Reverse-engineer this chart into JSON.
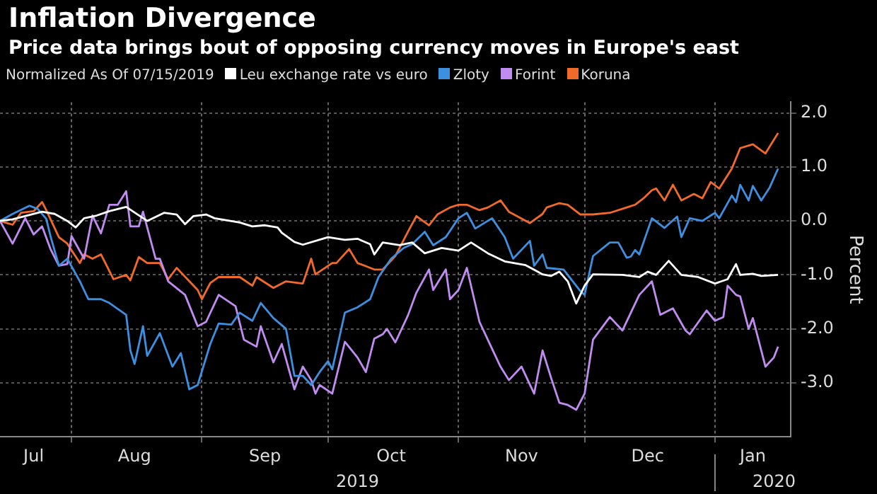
{
  "chart_data": {
    "type": "line",
    "title": "Inflation Divergence",
    "subtitle": "Price data brings bout of opposing currency moves in Europe's east",
    "legend_title": "Normalized As Of 07/15/2019",
    "legend": "top left",
    "ylabel": "Percent",
    "grid": true,
    "xlim": [
      "2019-07-15",
      "2020-01-19"
    ],
    "xticks": [
      {
        "value": "2019-07-23",
        "label": "Jul"
      },
      {
        "value": "2019-08-01",
        "label": null
      },
      {
        "value": "2019-08-16",
        "label": "Aug"
      },
      {
        "value": "2019-09-01",
        "label": null
      },
      {
        "value": "2019-09-16",
        "label": "Sep"
      },
      {
        "value": "2019-10-01",
        "label": null
      },
      {
        "value": "2019-10-16",
        "label": "Oct"
      },
      {
        "value": "2019-11-01",
        "label": null
      },
      {
        "value": "2019-11-16",
        "label": "Nov"
      },
      {
        "value": "2019-12-01",
        "label": null
      },
      {
        "value": "2019-12-16",
        "label": "Dec"
      },
      {
        "value": "2020-01-01",
        "label": null
      },
      {
        "value": "2020-01-10",
        "label": "Jan"
      }
    ],
    "ylim": [
      -4,
      2.2
    ],
    "yticks": [
      {
        "value": -3,
        "label": "-3.0"
      },
      {
        "value": -2,
        "label": "-2.0"
      },
      {
        "value": -1,
        "label": "-1.0"
      },
      {
        "value": 0,
        "label": "0.0"
      },
      {
        "value": 1,
        "label": "1.0"
      },
      {
        "value": 2,
        "label": "2.0"
      }
    ],
    "annotations": [
      "2019",
      "2020"
    ],
    "series": [
      {
        "name": "Leu exchange rate vs euro",
        "color": "#ffffff",
        "x": [
          "2019-07-15",
          "2019-07-18",
          "2019-07-25",
          "2019-07-28",
          "2019-07-31",
          "2019-08-02",
          "2019-08-04",
          "2019-08-07",
          "2019-08-10",
          "2019-08-14",
          "2019-08-19",
          "2019-08-23",
          "2019-08-26",
          "2019-08-28",
          "2019-08-30",
          "2019-09-02",
          "2019-09-04",
          "2019-09-10",
          "2019-09-13",
          "2019-09-16",
          "2019-09-19",
          "2019-09-20",
          "2019-09-23",
          "2019-09-25",
          "2019-10-01",
          "2019-10-05",
          "2019-10-08",
          "2019-10-11",
          "2019-10-12",
          "2019-10-14",
          "2019-10-18",
          "2019-10-21",
          "2019-10-24",
          "2019-10-28",
          "2019-11-01",
          "2019-11-04",
          "2019-11-08",
          "2019-11-12",
          "2019-11-17",
          "2019-11-21",
          "2019-11-23",
          "2019-11-25",
          "2019-11-27",
          "2019-11-29",
          "2019-12-01",
          "2019-12-03",
          "2019-12-10",
          "2019-12-14",
          "2019-12-16",
          "2019-12-18",
          "2019-12-21",
          "2019-12-24",
          "2019-12-28",
          "2020-01-01",
          "2020-01-04",
          "2020-01-06",
          "2020-01-07",
          "2020-01-10",
          "2020-01-12",
          "2020-01-16"
        ],
        "values": [
          0,
          0.03,
          0.17,
          0.13,
          0,
          -0.12,
          0.05,
          0.1,
          0.18,
          0.26,
          0,
          0.15,
          0.12,
          -0.06,
          0.09,
          0.12,
          0.05,
          -0.03,
          -0.1,
          -0.08,
          -0.12,
          -0.22,
          -0.39,
          -0.44,
          -0.3,
          -0.35,
          -0.33,
          -0.43,
          -0.62,
          -0.4,
          -0.45,
          -0.4,
          -0.6,
          -0.5,
          -0.55,
          -0.4,
          -0.6,
          -0.75,
          -0.82,
          -0.99,
          -1.02,
          -0.94,
          -1.12,
          -1.53,
          -1.2,
          -0.99,
          -1,
          -1.04,
          -0.94,
          -1,
          -0.74,
          -1,
          -1.04,
          -1.16,
          -1.08,
          -0.8,
          -1,
          -0.98,
          -1.02,
          -1
        ]
      },
      {
        "name": "Zloty",
        "color": "#3d8fe0",
        "x": [
          "2019-07-15",
          "2019-07-18",
          "2019-07-22",
          "2019-07-24",
          "2019-07-26",
          "2019-07-27",
          "2019-07-29",
          "2019-07-31",
          "2019-08-03",
          "2019-08-05",
          "2019-08-08",
          "2019-08-10",
          "2019-08-14",
          "2019-08-15",
          "2019-08-16",
          "2019-08-18",
          "2019-08-19",
          "2019-08-22",
          "2019-08-25",
          "2019-08-27",
          "2019-08-29",
          "2019-08-31",
          "2019-09-03",
          "2019-09-05",
          "2019-09-08",
          "2019-09-10",
          "2019-09-13",
          "2019-09-15",
          "2019-09-18",
          "2019-09-21",
          "2019-09-23",
          "2019-09-25",
          "2019-09-27",
          "2019-09-29",
          "2019-10-01",
          "2019-10-02",
          "2019-10-05",
          "2019-10-08",
          "2019-10-11",
          "2019-10-13",
          "2019-10-16",
          "2019-10-19",
          "2019-10-21",
          "2019-10-24",
          "2019-10-26",
          "2019-10-29",
          "2019-11-01",
          "2019-11-03",
          "2019-11-05",
          "2019-11-09",
          "2019-11-12",
          "2019-11-14",
          "2019-11-18",
          "2019-11-19",
          "2019-11-21",
          "2019-11-22",
          "2019-11-26",
          "2019-11-30",
          "2019-12-01",
          "2019-12-03",
          "2019-12-07",
          "2019-12-09",
          "2019-12-11",
          "2019-12-12",
          "2019-12-13",
          "2019-12-14",
          "2019-12-17",
          "2019-12-20",
          "2019-12-23",
          "2019-12-24",
          "2019-12-26",
          "2019-12-29",
          "2020-01-01",
          "2020-01-02",
          "2020-01-05",
          "2020-01-06",
          "2020-01-07",
          "2020-01-09",
          "2020-01-10",
          "2020-01-12",
          "2020-01-14",
          "2020-01-16"
        ],
        "values": [
          0,
          0.13,
          0.28,
          0.22,
          0.04,
          -0.28,
          -0.83,
          -0.7,
          -1.12,
          -1.45,
          -1.45,
          -1.52,
          -1.74,
          -2.4,
          -2.65,
          -1.95,
          -2.5,
          -2.08,
          -2.7,
          -2.45,
          -3.12,
          -3.04,
          -2.28,
          -1.9,
          -1.92,
          -1.7,
          -1.85,
          -1.52,
          -1.8,
          -2,
          -2.87,
          -2.87,
          -3.04,
          -2.8,
          -2.6,
          -2.75,
          -1.7,
          -1.6,
          -1.45,
          -1.04,
          -0.7,
          -0.5,
          -0.43,
          -0.2,
          -0.45,
          -0.3,
          0.05,
          0.15,
          -0.14,
          0.05,
          -0.3,
          -0.7,
          -0.37,
          -0.83,
          -0.62,
          -0.87,
          -0.9,
          -1.3,
          -1.37,
          -0.65,
          -0.4,
          -0.4,
          -0.68,
          -0.66,
          -0.54,
          -0.62,
          0.05,
          -0.13,
          0.08,
          -0.3,
          0.05,
          0,
          0.15,
          0.05,
          0.47,
          0.35,
          0.67,
          0.38,
          0.65,
          0.38,
          0.62,
          0.97
        ]
      },
      {
        "name": "Forint",
        "color": "#c08cf0",
        "x": [
          "2019-07-15",
          "2019-07-18",
          "2019-07-21",
          "2019-07-23",
          "2019-07-25",
          "2019-07-27",
          "2019-07-29",
          "2019-07-31",
          "2019-08-01",
          "2019-08-04",
          "2019-08-06",
          "2019-08-08",
          "2019-08-10",
          "2019-08-12",
          "2019-08-14",
          "2019-08-15",
          "2019-08-17",
          "2019-08-18",
          "2019-08-21",
          "2019-08-22",
          "2019-08-24",
          "2019-08-28",
          "2019-08-31",
          "2019-09-02",
          "2019-09-05",
          "2019-09-09",
          "2019-09-11",
          "2019-09-14",
          "2019-09-15",
          "2019-09-18",
          "2019-09-20",
          "2019-09-23",
          "2019-09-25",
          "2019-09-27",
          "2019-09-28",
          "2019-09-29",
          "2019-10-02",
          "2019-10-05",
          "2019-10-08",
          "2019-10-10",
          "2019-10-12",
          "2019-10-14",
          "2019-10-15",
          "2019-10-17",
          "2019-10-20",
          "2019-10-22",
          "2019-10-25",
          "2019-10-26",
          "2019-10-29",
          "2019-10-30",
          "2019-11-01",
          "2019-11-03",
          "2019-11-06",
          "2019-11-09",
          "2019-11-11",
          "2019-11-13",
          "2019-11-16",
          "2019-11-19",
          "2019-11-21",
          "2019-11-23",
          "2019-11-25",
          "2019-11-27",
          "2019-11-29",
          "2019-12-01",
          "2019-12-03",
          "2019-12-07",
          "2019-12-10",
          "2019-12-14",
          "2019-12-17",
          "2019-12-19",
          "2019-12-22",
          "2019-12-25",
          "2019-12-26",
          "2019-12-30",
          "2020-01-01",
          "2020-01-03",
          "2020-01-04",
          "2020-01-06",
          "2020-01-07",
          "2020-01-09",
          "2020-01-10",
          "2020-01-13",
          "2020-01-15",
          "2020-01-16"
        ],
        "values": [
          0,
          -0.42,
          0.05,
          -0.25,
          -0.1,
          -0.52,
          -0.83,
          -0.8,
          -0.28,
          -0.7,
          0.1,
          -0.23,
          0.3,
          0.3,
          0.55,
          -0.1,
          -0.1,
          0.17,
          -0.7,
          -0.7,
          -1.12,
          -1.37,
          -1.95,
          -1.87,
          -1.37,
          -1.58,
          -2.2,
          -2.33,
          -1.95,
          -2.62,
          -2.28,
          -3.12,
          -2.7,
          -2.95,
          -3.2,
          -3.04,
          -3.2,
          -2.24,
          -2.53,
          -2.8,
          -2.18,
          -2.1,
          -2,
          -2.25,
          -1.75,
          -1.33,
          -0.9,
          -1.28,
          -0.9,
          -1.45,
          -1.28,
          -0.87,
          -1.87,
          -2.37,
          -2.7,
          -2.95,
          -2.7,
          -3.2,
          -2.4,
          -2.9,
          -3.37,
          -3.41,
          -3.5,
          -3.2,
          -2.2,
          -1.78,
          -2.03,
          -1.37,
          -1.12,
          -1.74,
          -1.62,
          -2.03,
          -2.1,
          -1.66,
          -1.85,
          -1.78,
          -1.2,
          -1.37,
          -1.4,
          -2,
          -1.8,
          -2.7,
          -2.53,
          -2.33
        ]
      },
      {
        "name": "Koruna",
        "color": "#f26a2a",
        "x": [
          "2019-07-15",
          "2019-07-18",
          "2019-07-20",
          "2019-07-23",
          "2019-07-25",
          "2019-07-26",
          "2019-07-29",
          "2019-07-31",
          "2019-08-03",
          "2019-08-04",
          "2019-08-06",
          "2019-08-08",
          "2019-08-11",
          "2019-08-14",
          "2019-08-15",
          "2019-08-17",
          "2019-08-19",
          "2019-08-22",
          "2019-08-24",
          "2019-08-26",
          "2019-08-31",
          "2019-09-01",
          "2019-09-03",
          "2019-09-05",
          "2019-09-10",
          "2019-09-13",
          "2019-09-14",
          "2019-09-18",
          "2019-09-21",
          "2019-09-25",
          "2019-09-27",
          "2019-09-28",
          "2019-10-02",
          "2019-10-03",
          "2019-10-06",
          "2019-10-08",
          "2019-10-12",
          "2019-10-14",
          "2019-10-17",
          "2019-10-20",
          "2019-10-22",
          "2019-10-25",
          "2019-10-27",
          "2019-10-30",
          "2019-11-01",
          "2019-11-03",
          "2019-11-06",
          "2019-11-08",
          "2019-11-11",
          "2019-11-13",
          "2019-11-18",
          "2019-11-21",
          "2019-11-22",
          "2019-11-25",
          "2019-11-27",
          "2019-11-30",
          "2019-12-03",
          "2019-12-07",
          "2019-12-11",
          "2019-12-13",
          "2019-12-15",
          "2019-12-17",
          "2019-12-18",
          "2019-12-20",
          "2019-12-22",
          "2019-12-24",
          "2019-12-27",
          "2019-12-29",
          "2019-12-31",
          "2020-01-02",
          "2020-01-05",
          "2020-01-07",
          "2020-01-10",
          "2020-01-13",
          "2020-01-16"
        ],
        "values": [
          0,
          -0.07,
          0.15,
          0.18,
          0.35,
          0.2,
          -0.3,
          -0.42,
          -0.78,
          -0.62,
          -0.7,
          -0.62,
          -1.08,
          -1,
          -1.1,
          -0.67,
          -0.78,
          -0.78,
          -1.08,
          -0.87,
          -1.28,
          -1.45,
          -1.15,
          -1.04,
          -1.04,
          -1.2,
          -1.04,
          -1.24,
          -1.12,
          -1.16,
          -0.7,
          -0.99,
          -0.78,
          -0.78,
          -0.52,
          -0.78,
          -0.9,
          -0.9,
          -0.65,
          -0.2,
          0.09,
          -0.08,
          0.12,
          0.25,
          0.3,
          0.3,
          0.2,
          0.25,
          0.38,
          0.17,
          -0.04,
          0.13,
          0.25,
          0.33,
          0.3,
          0.12,
          0.12,
          0.15,
          0.25,
          0.3,
          0.42,
          0.57,
          0.6,
          0.38,
          0.67,
          0.38,
          0.5,
          0.42,
          0.72,
          0.6,
          0.97,
          1.35,
          1.42,
          1.25,
          1.63
        ]
      }
    ]
  }
}
